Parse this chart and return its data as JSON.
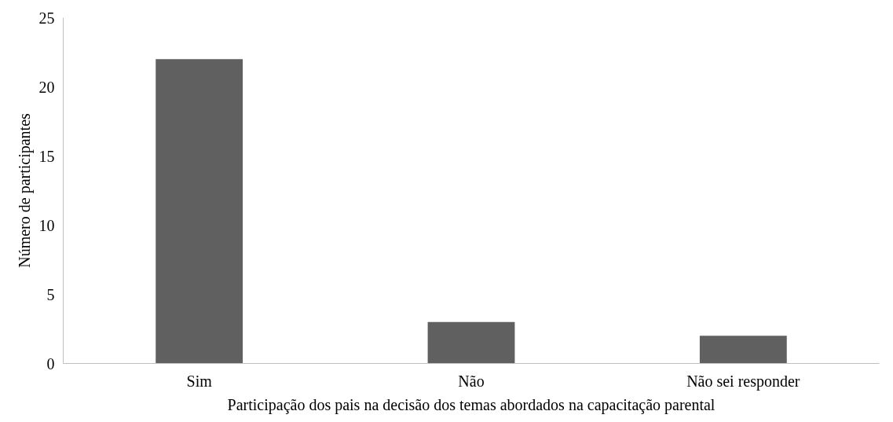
{
  "chart_data": {
    "type": "bar",
    "xlabel": "Participação dos pais na decisão dos temas abordados na capacitação parental",
    "ylabel": "Número de participantes",
    "categories": [
      "Sim",
      "Não",
      "Não sei responder"
    ],
    "values": [
      22,
      3,
      2
    ],
    "color": "#606060",
    "ylim": [
      0,
      25
    ],
    "yticks": [
      0,
      5,
      10,
      15,
      20,
      25
    ],
    "grid": false
  }
}
